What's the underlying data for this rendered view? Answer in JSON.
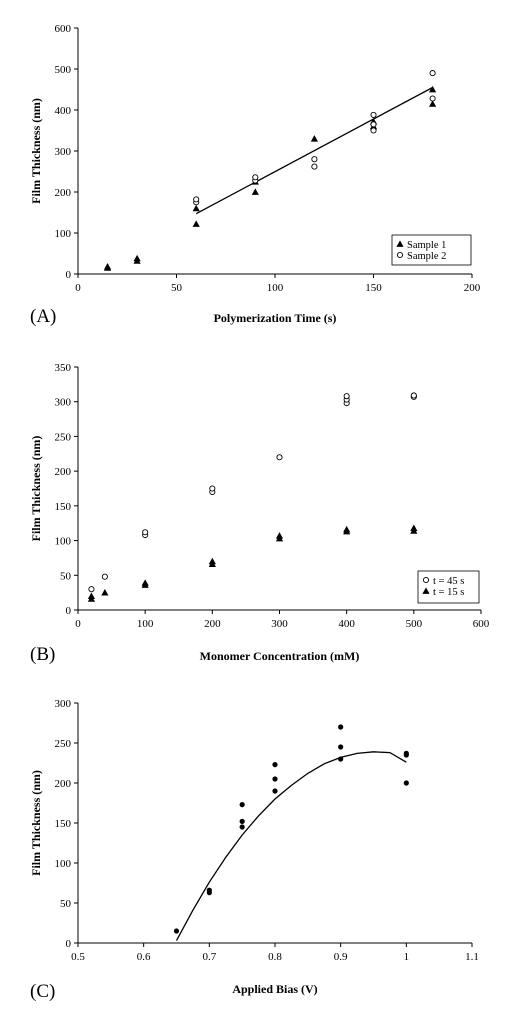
{
  "chart_data": [
    {
      "panel_label": "(A)",
      "type": "scatter",
      "xlabel": "Polymerization Time (s)",
      "ylabel": "Film Thickness (nm)",
      "xlim": [
        0,
        200
      ],
      "ylim": [
        0,
        600
      ],
      "xticks": [
        0,
        50,
        100,
        150,
        200
      ],
      "yticks": [
        0,
        100,
        200,
        300,
        400,
        500,
        600
      ],
      "grid": false,
      "legend_position": "bottom-right",
      "series": [
        {
          "name": "Sample 1",
          "marker": "triangle",
          "x": [
            15,
            15,
            30,
            30,
            60,
            60,
            90,
            90,
            120,
            150,
            150,
            180,
            180
          ],
          "y": [
            15,
            18,
            32,
            38,
            122,
            160,
            200,
            225,
            330,
            360,
            372,
            415,
            450
          ]
        },
        {
          "name": "Sample 2",
          "marker": "circle-open",
          "x": [
            60,
            60,
            90,
            90,
            120,
            120,
            150,
            150,
            150,
            180,
            180
          ],
          "y": [
            175,
            182,
            228,
            236,
            262,
            280,
            350,
            365,
            388,
            428,
            490
          ]
        }
      ],
      "fit": {
        "kind": "linear",
        "x": [
          60,
          180
        ],
        "y": [
          147,
          455
        ]
      }
    },
    {
      "panel_label": "(B)",
      "type": "scatter",
      "xlabel": "Monomer Concentration (mM)",
      "ylabel": "Film Thickness (nm)",
      "xlim": [
        0,
        600
      ],
      "ylim": [
        0,
        350
      ],
      "xticks": [
        0,
        100,
        200,
        300,
        400,
        500,
        600
      ],
      "yticks": [
        0,
        50,
        100,
        150,
        200,
        250,
        300,
        350
      ],
      "grid": false,
      "legend_position": "bottom-right",
      "series": [
        {
          "name": "t = 45 s",
          "marker": "circle-open",
          "x": [
            20,
            40,
            100,
            100,
            200,
            200,
            300,
            400,
            400,
            400,
            500,
            500
          ],
          "y": [
            30,
            48,
            108,
            112,
            170,
            175,
            220,
            298,
            303,
            308,
            307,
            309
          ]
        },
        {
          "name": "t = 15 s",
          "marker": "triangle",
          "x": [
            20,
            20,
            40,
            100,
            100,
            200,
            200,
            300,
            300,
            400,
            400,
            500,
            500
          ],
          "y": [
            16,
            20,
            25,
            36,
            39,
            66,
            70,
            103,
            107,
            113,
            116,
            114,
            118
          ]
        }
      ]
    },
    {
      "panel_label": "(C)",
      "type": "scatter",
      "xlabel": "Applied Bias (V)",
      "ylabel": "Film Thickness (nm)",
      "xlim": [
        0.5,
        1.1
      ],
      "ylim": [
        0,
        300
      ],
      "xticks": [
        0.5,
        0.6,
        0.7,
        0.8,
        0.9,
        1,
        1.1
      ],
      "yticks": [
        0,
        50,
        100,
        150,
        200,
        250,
        300
      ],
      "grid": false,
      "series": [
        {
          "marker": "circle-filled",
          "x": [
            0.65,
            0.7,
            0.7,
            0.75,
            0.75,
            0.75,
            0.8,
            0.8,
            0.8,
            0.9,
            0.9,
            0.9,
            1,
            1,
            1
          ],
          "y": [
            15,
            63,
            66,
            145,
            152,
            173,
            190,
            205,
            223,
            230,
            245,
            270,
            200,
            235,
            237
          ]
        }
      ],
      "fit": {
        "kind": "quadratic",
        "x": [
          0.65,
          0.675,
          0.7,
          0.725,
          0.75,
          0.775,
          0.8,
          0.825,
          0.85,
          0.875,
          0.9,
          0.925,
          0.95,
          0.975,
          1.0
        ],
        "y": [
          3,
          41,
          76,
          107,
          135,
          159,
          180,
          197,
          212,
          224,
          232,
          237,
          239,
          238,
          226
        ]
      }
    }
  ]
}
